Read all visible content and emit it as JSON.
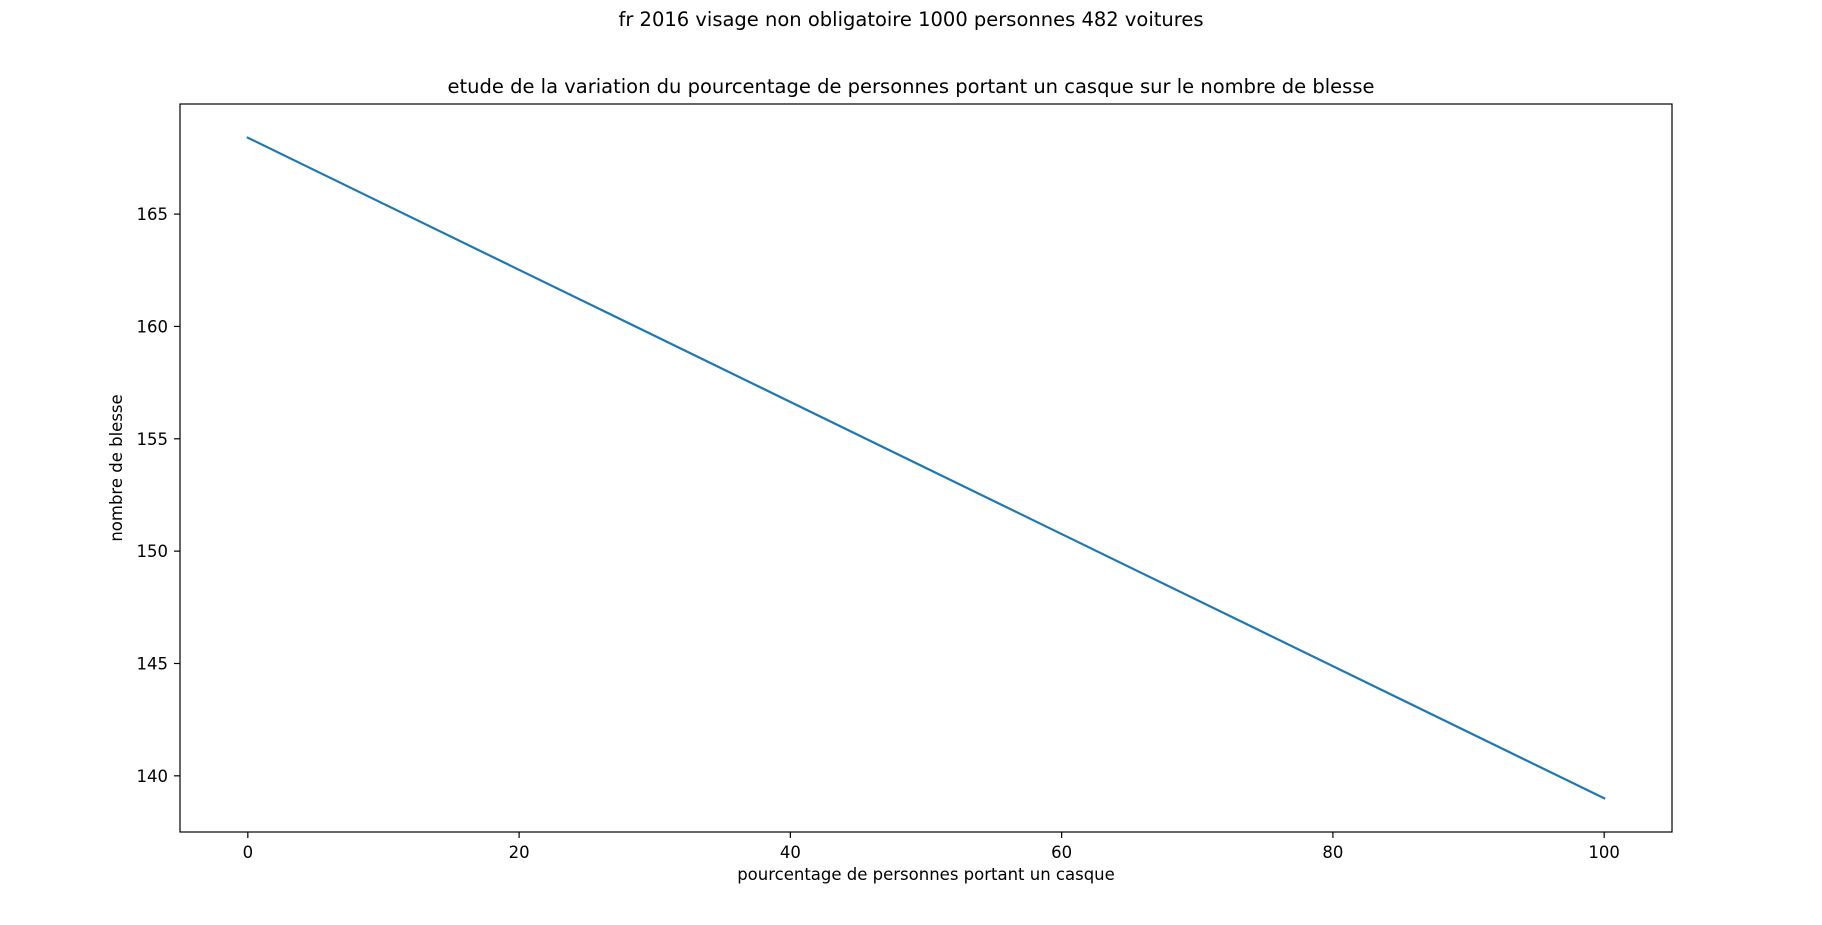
{
  "figure": {
    "suptitle": "fr 2016 visage non obligatoire 1000 personnes 482 voitures"
  },
  "chart_data": {
    "type": "line",
    "title": "etude de la variation du pourcentage de personnes portant un casque sur le nombre de blesse",
    "xlabel": "pourcentage de personnes portant un casque",
    "ylabel": "nombre de blesse",
    "xlim": [
      -5,
      105
    ],
    "ylim": [
      137.5,
      169.9
    ],
    "x_ticks": [
      0,
      20,
      40,
      60,
      80,
      100
    ],
    "y_ticks": [
      140,
      145,
      150,
      155,
      160,
      165
    ],
    "grid": false,
    "series": [
      {
        "color": "#1f77b4",
        "x": [
          0,
          100
        ],
        "y": [
          168.4,
          139.0
        ]
      }
    ]
  }
}
